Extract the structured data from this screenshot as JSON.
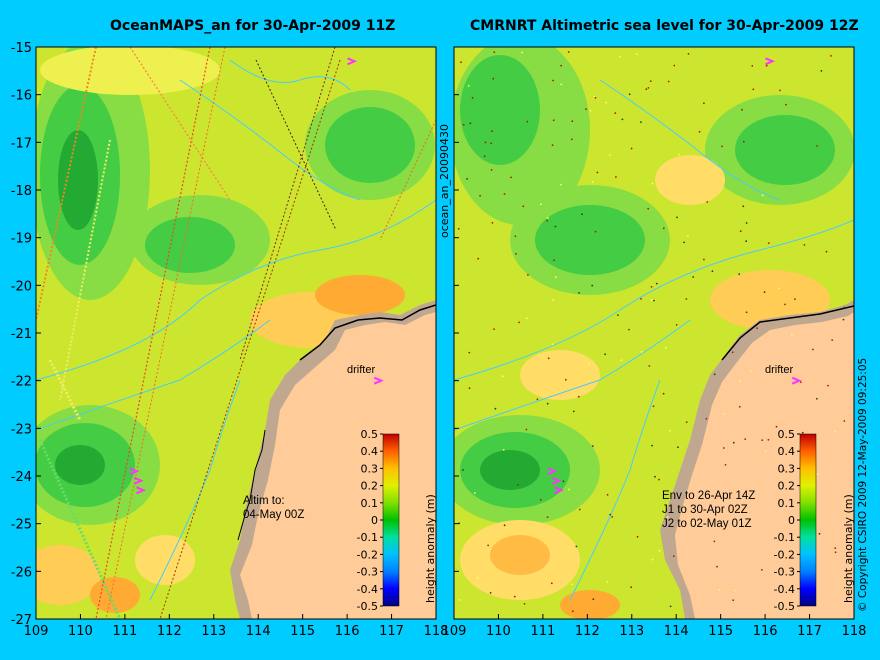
{
  "panels": [
    {
      "title": "OceanMAPS_an for 30-Apr-2009 11Z",
      "annotation_lines": [
        "Altim to:",
        "04-May 00Z"
      ],
      "drifter_label": "drifter"
    },
    {
      "title": "CMRNRT Altimetric sea level  for 30-Apr-2009 12Z",
      "annotation_lines": [
        "Env to 26-Apr 14Z",
        "J1 to 30-Apr 02Z",
        "J2 to 02-May 01Z"
      ],
      "drifter_label": "drifter"
    }
  ],
  "axes": {
    "x_ticks": [
      "109",
      "110",
      "111",
      "112",
      "113",
      "114",
      "115",
      "116",
      "117",
      "118"
    ],
    "y_ticks": [
      "-15",
      "-16",
      "-17",
      "-18",
      "-19",
      "-20",
      "-21",
      "-22",
      "-23",
      "-24",
      "-25",
      "-26",
      "-27"
    ]
  },
  "colorbar": {
    "label": "height anomaly (m)",
    "ticks": [
      "0.5",
      "0.4",
      "0.3",
      "0.2",
      "0.1",
      "0",
      "-0.1",
      "-0.2",
      "-0.3",
      "-0.4",
      "-0.5"
    ],
    "colors": [
      "#000080",
      "#0000ff",
      "#0080ff",
      "#00c0ff",
      "#00e0a0",
      "#00c000",
      "#80e000",
      "#e0f000",
      "#ffc000",
      "#ff6000",
      "#c00000"
    ]
  },
  "side_label": "ocean_an_20090430",
  "copyright": "© Copyright CSIRO 2009   12-May-2009 09:25:05",
  "colors": {
    "background": "#00ccff",
    "land": "#ffcc99",
    "shelf": "#c0a890",
    "sea_base": "#cce630",
    "green": "#44cc44",
    "dark_green": "#22aa33",
    "orange": "#ffaa33",
    "contour": "#44ccff",
    "drifter": "#ff33ff"
  },
  "map_data": {
    "lon_range": [
      109,
      118
    ],
    "lat_range": [
      -27,
      -15
    ],
    "drifter_positions": [
      [
        116.7,
        -22.0
      ],
      [
        111.2,
        -23.9
      ],
      [
        111.3,
        -24.1
      ],
      [
        111.35,
        -24.3
      ],
      [
        116.1,
        -15.3
      ]
    ]
  }
}
